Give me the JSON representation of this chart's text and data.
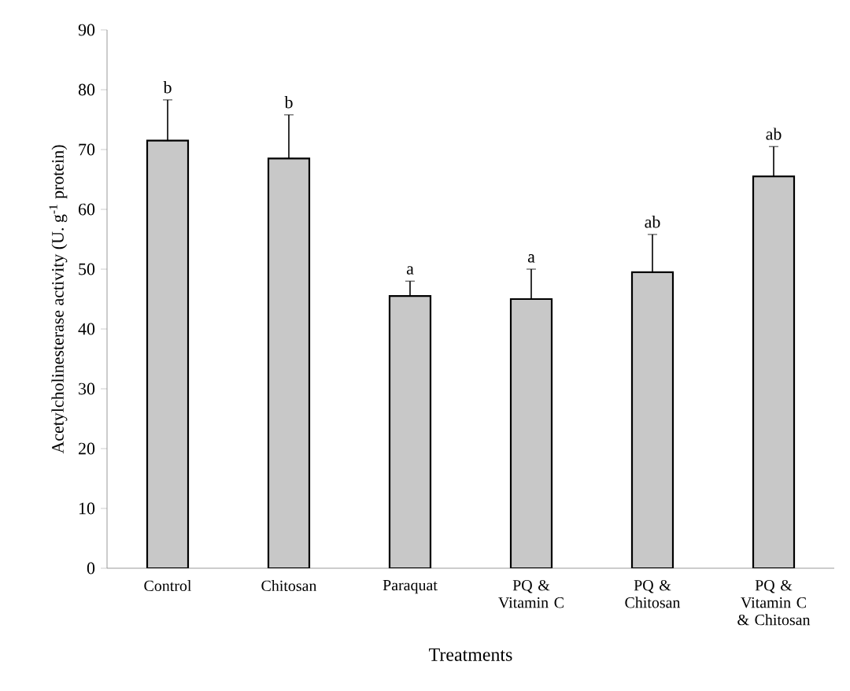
{
  "chart_data": {
    "type": "bar",
    "xlabel": "Treatments",
    "ylabel": "Acetylcholinesterase activity (U. g$^{-1}$ protein)",
    "categories": [
      "Control",
      "Chitosan",
      "Paraquat",
      "PQ & Vitamin C",
      "PQ & Chitosan",
      "PQ & Vitamin C & Chitosan"
    ],
    "values": [
      71.5,
      68.5,
      45.5,
      45,
      49.5,
      65.5
    ],
    "errors": [
      [
        71.5,
        78.3
      ],
      [
        68.5,
        75.8
      ],
      [
        45.5,
        48
      ],
      [
        45,
        50
      ],
      [
        49.5,
        55.8
      ],
      [
        65.5,
        70.5
      ]
    ],
    "color": "#c8c8c8",
    "ylim": [
      0,
      90
    ],
    "yticks": [
      0,
      10,
      20,
      30,
      40,
      50,
      60,
      70,
      80,
      90
    ],
    "grid": false,
    "annotations": [
      {
        "text": "b",
        "x": "Control",
        "y": 78.3
      },
      {
        "text": "b",
        "x": "Chitosan",
        "y": 75.8
      },
      {
        "text": "a",
        "x": "Paraquat",
        "y": 48
      },
      {
        "text": "a",
        "x": "PQ & Vitamin C",
        "y": 50
      },
      {
        "text": "ab",
        "x": "PQ & Chitosan",
        "y": 55.8
      },
      {
        "text": "ab",
        "x": "PQ & Vitamin C & Chitosan",
        "y": 70.5
      }
    ]
  }
}
